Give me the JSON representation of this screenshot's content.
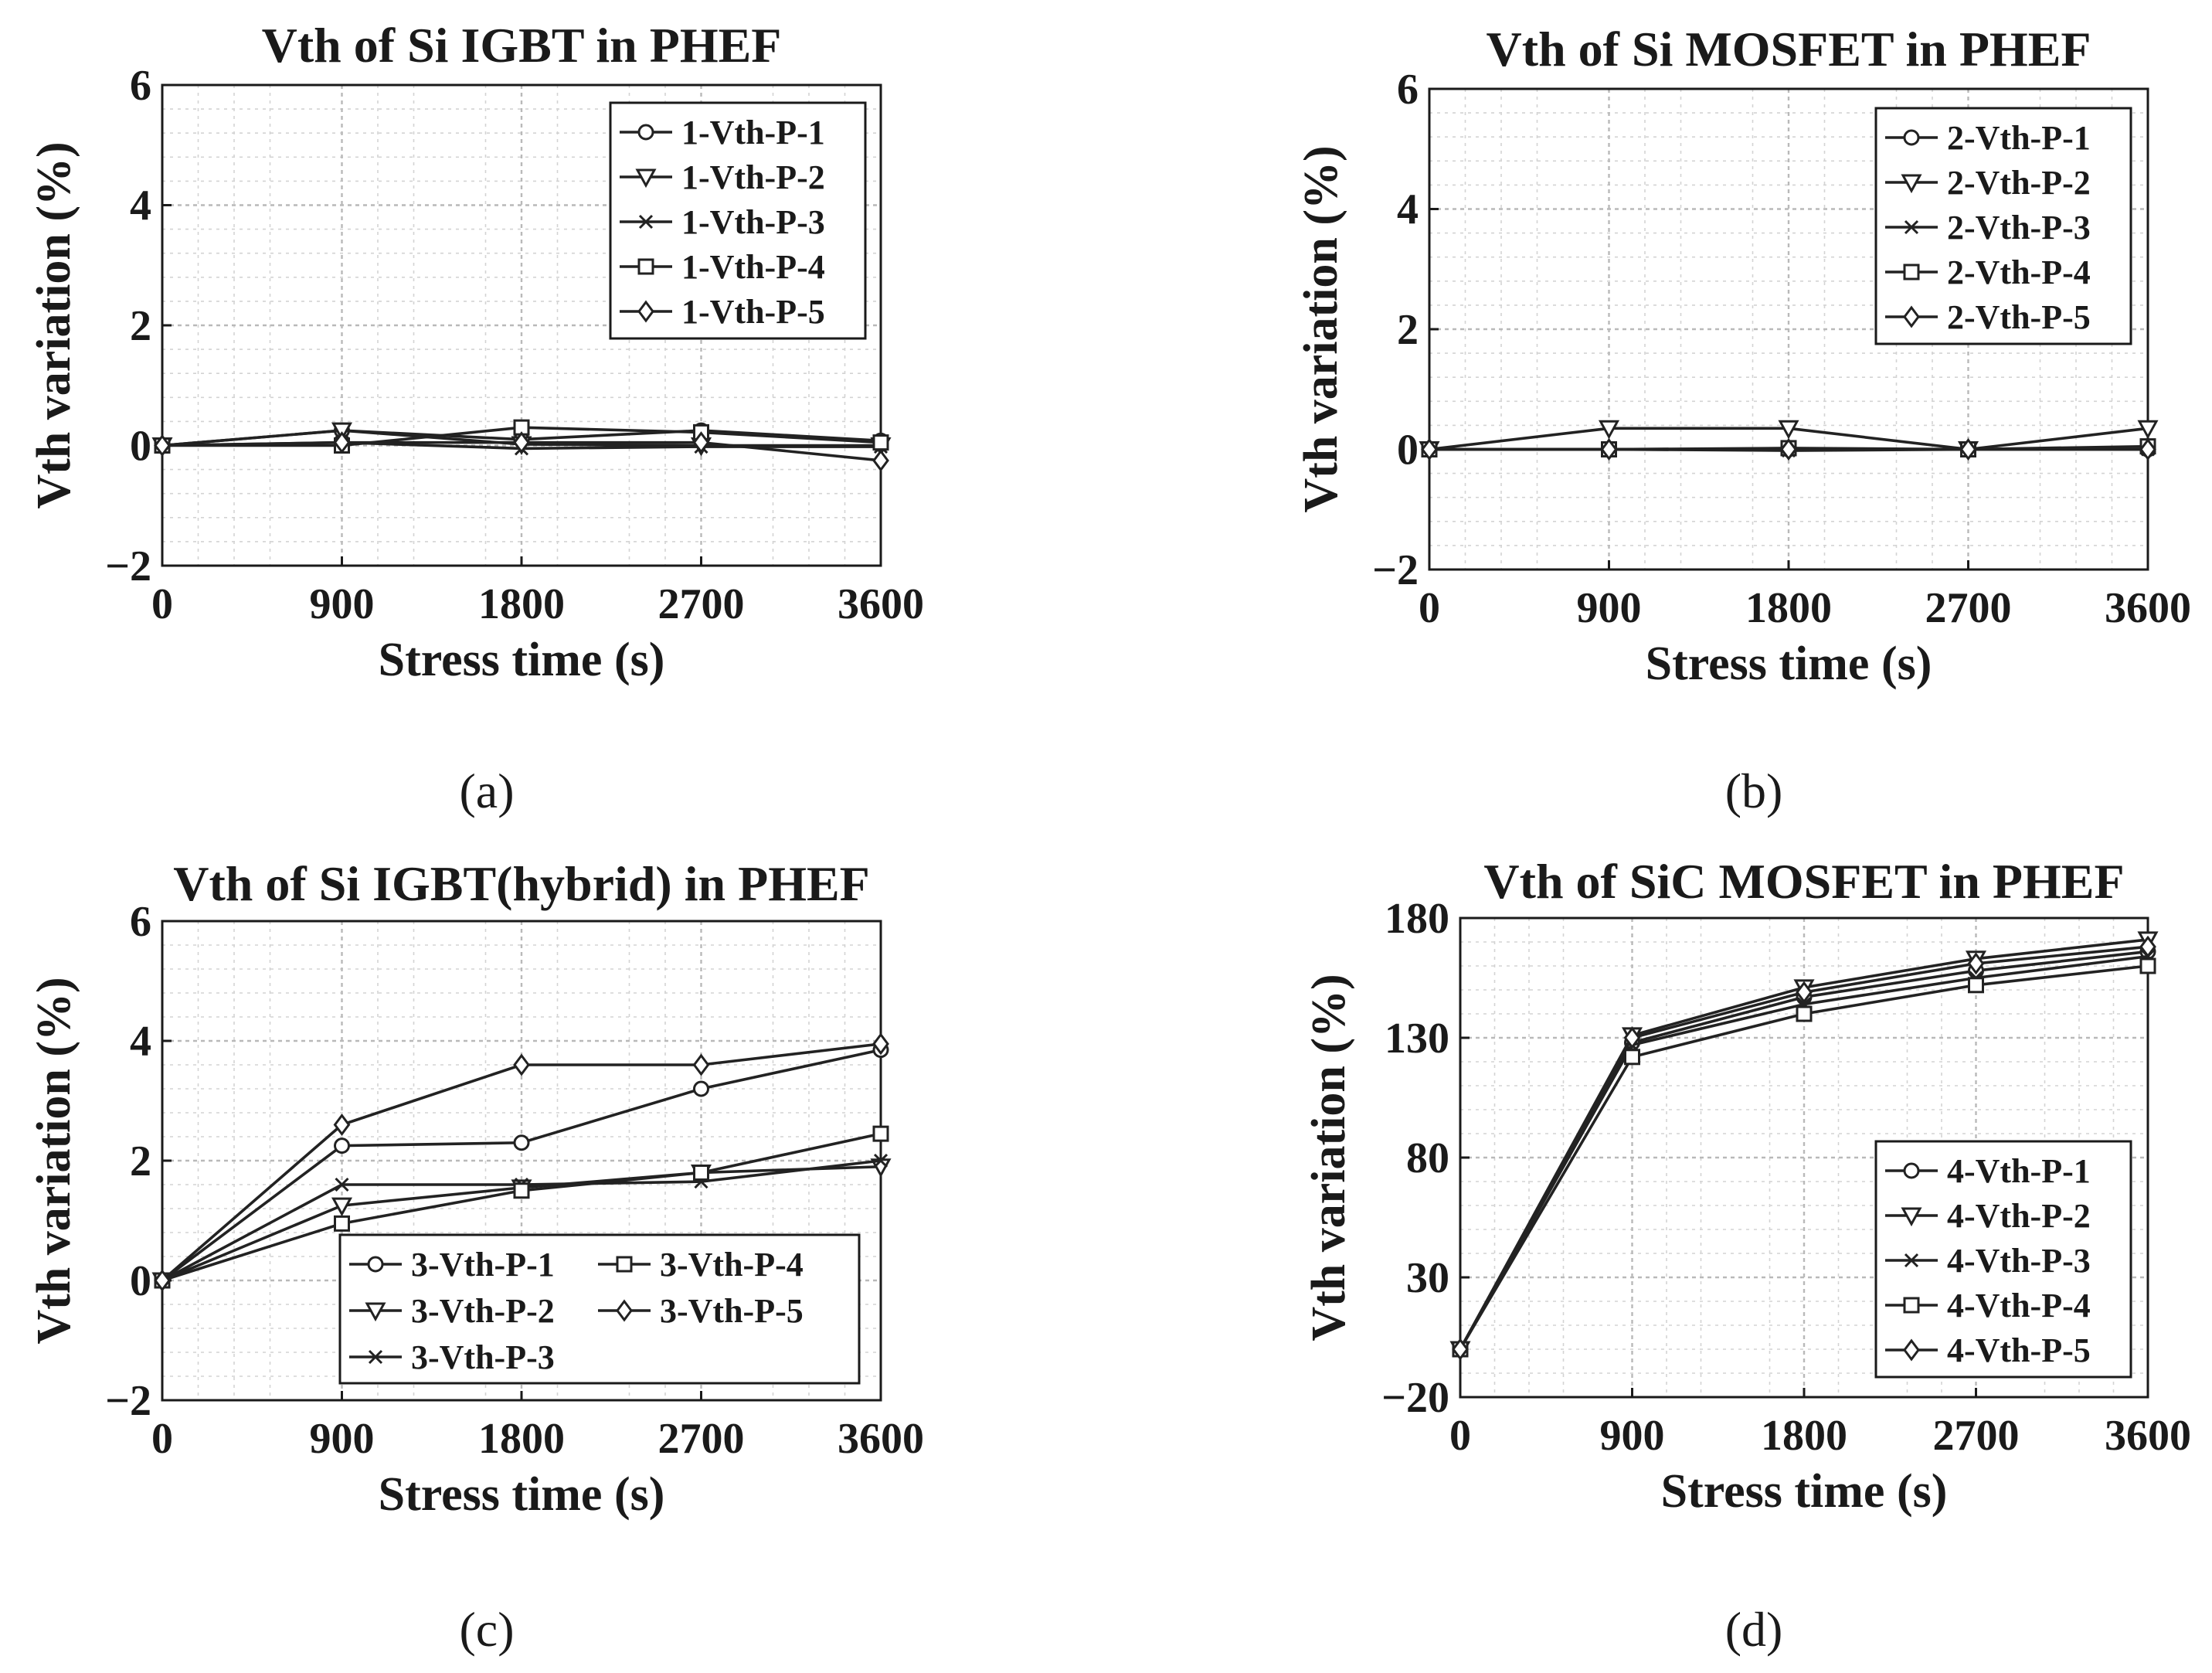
{
  "chart_data": [
    {
      "id": "a",
      "type": "line",
      "title": "Vth of Si IGBT in PHEF",
      "xlabel": "Stress time (s)",
      "ylabel": "Vth variation (%)",
      "caption": "(a)",
      "x": [
        0,
        900,
        1800,
        2700,
        3600
      ],
      "xticks": [
        "0",
        "900",
        "1800",
        "2700",
        "3600"
      ],
      "xlim": [
        0,
        3600
      ],
      "ylim": [
        -2,
        6
      ],
      "yticks": [
        -2,
        0,
        2,
        4,
        6
      ],
      "ytick_labels": [
        "−2",
        "0",
        "2",
        "4",
        "6"
      ],
      "legend_position": "top-right",
      "series": [
        {
          "name": "1-Vth-P-1",
          "marker": "circle",
          "values": [
            0,
            0.25,
            0.1,
            0.25,
            0.08
          ]
        },
        {
          "name": "1-Vth-P-2",
          "marker": "triangle-down",
          "values": [
            0,
            0.25,
            0.02,
            0.0,
            0.0
          ]
        },
        {
          "name": "1-Vth-P-3",
          "marker": "x",
          "values": [
            0,
            0.05,
            -0.05,
            -0.02,
            -0.02
          ]
        },
        {
          "name": "1-Vth-P-4",
          "marker": "square",
          "values": [
            0,
            0.0,
            0.3,
            0.22,
            0.05
          ]
        },
        {
          "name": "1-Vth-P-5",
          "marker": "diamond",
          "values": [
            0,
            0.05,
            0.05,
            0.05,
            -0.25
          ]
        }
      ]
    },
    {
      "id": "b",
      "type": "line",
      "title": "Vth of Si MOSFET in PHEF",
      "xlabel": "Stress time (s)",
      "ylabel": "Vth variation (%)",
      "caption": "(b)",
      "x": [
        0,
        900,
        1800,
        2700,
        3600
      ],
      "xticks": [
        "0",
        "900",
        "1800",
        "2700",
        "3600"
      ],
      "xlim": [
        0,
        3600
      ],
      "ylim": [
        -2,
        6
      ],
      "yticks": [
        -2,
        0,
        2,
        4,
        6
      ],
      "ytick_labels": [
        "−2",
        "0",
        "2",
        "4",
        "6"
      ],
      "legend_position": "top-right",
      "series": [
        {
          "name": "2-Vth-P-1",
          "marker": "circle",
          "values": [
            0,
            0.0,
            0.0,
            0.0,
            0.0
          ]
        },
        {
          "name": "2-Vth-P-2",
          "marker": "triangle-down",
          "values": [
            0,
            0.35,
            0.35,
            0.0,
            0.35
          ]
        },
        {
          "name": "2-Vth-P-3",
          "marker": "x",
          "values": [
            0,
            0.0,
            -0.02,
            0.0,
            0.0
          ]
        },
        {
          "name": "2-Vth-P-4",
          "marker": "square",
          "values": [
            0,
            0.0,
            0.02,
            0.0,
            0.05
          ]
        },
        {
          "name": "2-Vth-P-5",
          "marker": "diamond",
          "values": [
            0,
            0.0,
            0.0,
            0.0,
            0.0
          ]
        }
      ]
    },
    {
      "id": "c",
      "type": "line",
      "title": "Vth of Si IGBT(hybrid) in PHEF",
      "xlabel": "Stress time (s)",
      "ylabel": "Vth variation (%)",
      "caption": "(c)",
      "x": [
        0,
        900,
        1800,
        2700,
        3600
      ],
      "xticks": [
        "0",
        "900",
        "1800",
        "2700",
        "3600"
      ],
      "xlim": [
        0,
        3600
      ],
      "ylim": [
        -2,
        6
      ],
      "yticks": [
        -2,
        0,
        2,
        4,
        6
      ],
      "ytick_labels": [
        "−2",
        "0",
        "2",
        "4",
        "6"
      ],
      "legend_position": "bottom-right",
      "legend_columns": 2,
      "series": [
        {
          "name": "3-Vth-P-1",
          "marker": "circle",
          "values": [
            0,
            2.25,
            2.3,
            3.2,
            3.85
          ]
        },
        {
          "name": "3-Vth-P-2",
          "marker": "triangle-down",
          "values": [
            0,
            1.25,
            1.55,
            1.8,
            1.9
          ]
        },
        {
          "name": "3-Vth-P-3",
          "marker": "x",
          "values": [
            0,
            1.6,
            1.6,
            1.65,
            2.0
          ]
        },
        {
          "name": "3-Vth-P-4",
          "marker": "square",
          "values": [
            0,
            0.95,
            1.5,
            1.8,
            2.45
          ]
        },
        {
          "name": "3-Vth-P-5",
          "marker": "diamond",
          "values": [
            0,
            2.6,
            3.6,
            3.6,
            3.95
          ]
        }
      ]
    },
    {
      "id": "d",
      "type": "line",
      "title": "Vth of SiC MOSFET in PHEF",
      "xlabel": "Stress time (s)",
      "ylabel": "Vth variation (%)",
      "caption": "(d)",
      "x": [
        0,
        900,
        1800,
        2700,
        3600
      ],
      "xticks": [
        "0",
        "900",
        "1800",
        "2700",
        "3600"
      ],
      "xlim": [
        0,
        3600
      ],
      "ylim": [
        -20,
        180
      ],
      "yticks": [
        -20,
        30,
        80,
        130,
        180
      ],
      "ytick_labels": [
        "−20",
        "30",
        "80",
        "130",
        "180"
      ],
      "legend_position": "bottom-right",
      "series": [
        {
          "name": "4-Vth-P-1",
          "marker": "circle",
          "values": [
            0,
            128,
            147,
            158,
            166
          ]
        },
        {
          "name": "4-Vth-P-2",
          "marker": "triangle-down",
          "values": [
            0,
            131,
            151,
            163,
            171
          ]
        },
        {
          "name": "4-Vth-P-3",
          "marker": "x",
          "values": [
            0,
            127,
            144,
            155,
            164
          ]
        },
        {
          "name": "4-Vth-P-4",
          "marker": "square",
          "values": [
            0,
            122,
            140,
            152,
            160
          ]
        },
        {
          "name": "4-Vth-P-5",
          "marker": "diamond",
          "values": [
            0,
            130,
            149,
            161,
            168
          ]
        }
      ]
    }
  ]
}
